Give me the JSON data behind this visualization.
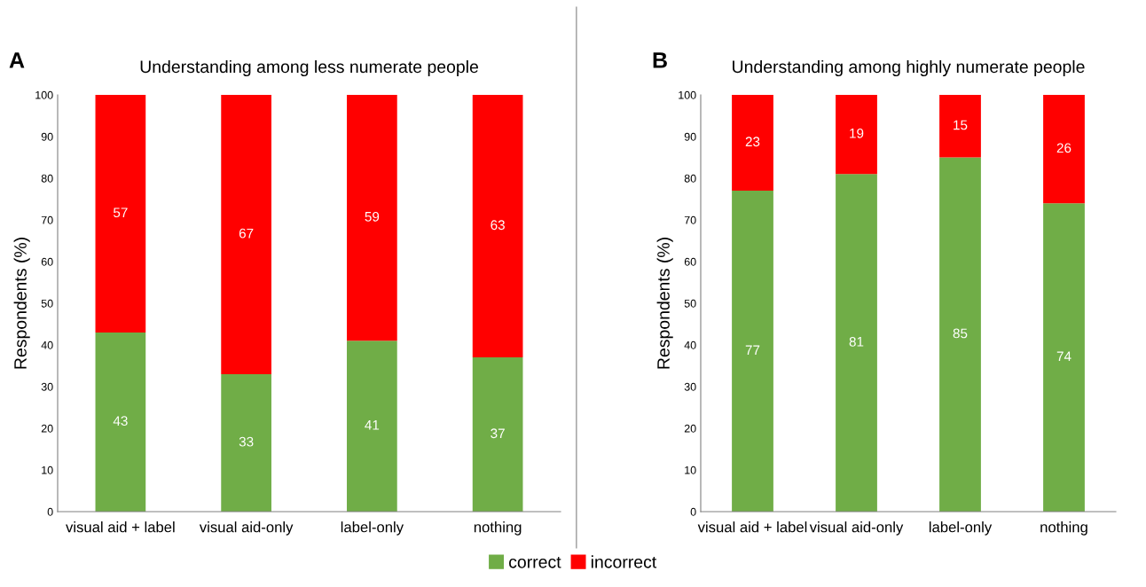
{
  "chart_data": [
    {
      "type": "bar",
      "stacked": true,
      "title": "Understanding among less numerate people",
      "ylabel": "Respondents (%)",
      "annotations": [
        "A"
      ],
      "categories": [
        "visual aid + label",
        "visual aid-only",
        "label-only",
        "nothing"
      ],
      "series": [
        {
          "name": "correct",
          "color": "#70ad47",
          "values": [
            43,
            33,
            41,
            37
          ]
        },
        {
          "name": "incorrect",
          "color": "#ff0000",
          "values": [
            57,
            67,
            59,
            63
          ]
        }
      ],
      "ylim": [
        0,
        100
      ],
      "yticks": [
        0,
        10,
        20,
        30,
        40,
        50,
        60,
        70,
        80,
        90,
        100
      ],
      "grid": false,
      "data_labels": true,
      "legend": "bottom"
    },
    {
      "type": "bar",
      "stacked": true,
      "title": "Understanding among highly numerate people",
      "ylabel": "Respondents (%)",
      "annotations": [
        "B"
      ],
      "categories": [
        "visual aid + label",
        "visual aid-only",
        "label-only",
        "nothing"
      ],
      "series": [
        {
          "name": "correct",
          "color": "#70ad47",
          "values": [
            77,
            81,
            85,
            74
          ]
        },
        {
          "name": "incorrect",
          "color": "#ff0000",
          "values": [
            23,
            19,
            15,
            26
          ]
        }
      ],
      "ylim": [
        0,
        100
      ],
      "yticks": [
        0,
        10,
        20,
        30,
        40,
        50,
        60,
        70,
        80,
        90,
        100
      ],
      "grid": false,
      "data_labels": true,
      "legend": "bottom"
    }
  ]
}
